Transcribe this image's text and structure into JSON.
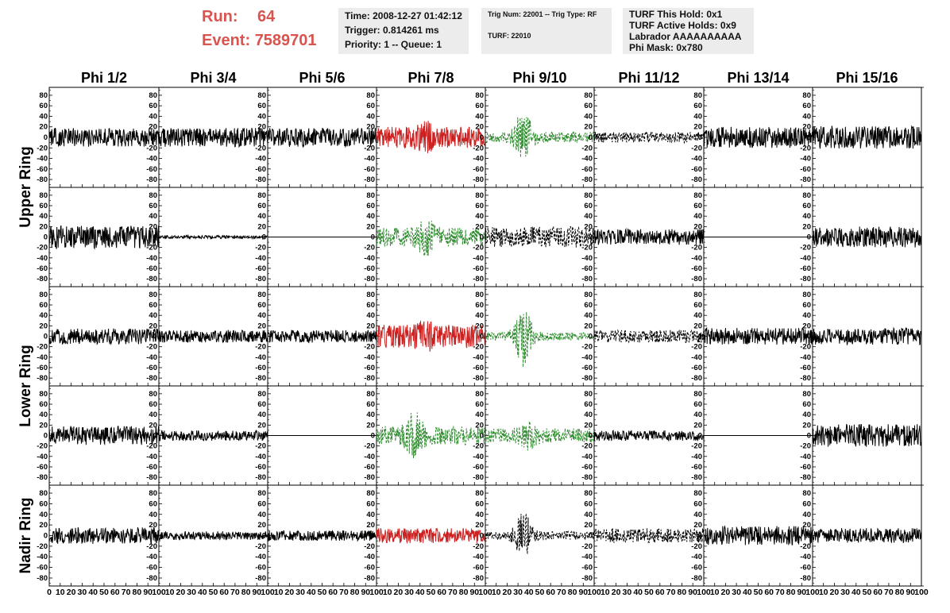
{
  "header": {
    "run_label": "Run:",
    "run_value": "64",
    "event_label": "Event:",
    "event_value": "7589701"
  },
  "info_time": {
    "time": "Time: 2008-12-27 01:42:12",
    "trigger": "Trigger: 0.814261 ms",
    "priority": "Priority: 1 -- Queue: 1"
  },
  "info_trig": {
    "trig": "Trig Num: 22001 -- Trig Type: RF",
    "turf": "TURF: 22010"
  },
  "info_turf": {
    "hold": "TURF This Hold: 0x1",
    "active": "TURF Active Holds: 0x9",
    "labrador": "Labrador AAAAAAAAAA",
    "phimask": "Phi Mask: 0x780"
  },
  "colors": {
    "normal": "#000000",
    "triggered": "#cc2222",
    "masked": "#2e8b2e",
    "info_bg": "#ececec",
    "header": "#d9534f"
  },
  "chart_data": {
    "type": "line",
    "columns": [
      "Phi 1/2",
      "Phi 3/4",
      "Phi 5/6",
      "Phi 7/8",
      "Phi 9/10",
      "Phi 11/12",
      "Phi 13/14",
      "Phi 15/16"
    ],
    "ring_labels": [
      "Upper Ring",
      "Lower Ring",
      "Nadir Ring"
    ],
    "rows": 5,
    "ylim": [
      -95,
      95
    ],
    "yticks": [
      -80,
      -60,
      -40,
      -20,
      0,
      20,
      40,
      60,
      80
    ],
    "xlim": [
      0,
      100
    ],
    "xticks": [
      0,
      10,
      20,
      30,
      40,
      50,
      60,
      70,
      80,
      90,
      100
    ],
    "grid": false,
    "panels": [
      [
        {
          "style": "solid",
          "color": "normal",
          "amp": 18
        },
        {
          "style": "solid",
          "color": "normal",
          "amp": 18
        },
        {
          "style": "solid",
          "color": "normal",
          "amp": 18
        },
        {
          "style": "solid",
          "color": "triggered",
          "amp": 20,
          "burst": [
            45,
            18
          ]
        },
        {
          "style": "dashed",
          "color": "masked",
          "amp": 10,
          "burst": [
            35,
            45
          ]
        },
        {
          "style": "dashed",
          "color": "normal",
          "amp": 10
        },
        {
          "style": "solid",
          "color": "normal",
          "amp": 20
        },
        {
          "style": "solid",
          "color": "normal",
          "amp": 22
        }
      ],
      [
        {
          "style": "solid",
          "color": "normal",
          "amp": 22
        },
        {
          "style": "solid",
          "color": "normal",
          "amp": 3
        },
        {
          "style": "flat",
          "color": "normal",
          "amp": 0
        },
        {
          "style": "dashed",
          "color": "masked",
          "amp": 18,
          "burst": [
            45,
            25
          ]
        },
        {
          "style": "dashed",
          "color": "normal",
          "amp": 20
        },
        {
          "style": "solid",
          "color": "normal",
          "amp": 15
        },
        {
          "style": "flat",
          "color": "normal",
          "amp": 0
        },
        {
          "style": "solid",
          "color": "normal",
          "amp": 20
        }
      ],
      [
        {
          "style": "solid",
          "color": "normal",
          "amp": 15
        },
        {
          "style": "solid",
          "color": "normal",
          "amp": 12
        },
        {
          "style": "solid",
          "color": "normal",
          "amp": 12
        },
        {
          "style": "solid",
          "color": "triggered",
          "amp": 22,
          "burst": [
            45,
            12
          ]
        },
        {
          "style": "dashed",
          "color": "masked",
          "amp": 8,
          "burst": [
            35,
            55
          ]
        },
        {
          "style": "dashed",
          "color": "normal",
          "amp": 12
        },
        {
          "style": "solid",
          "color": "normal",
          "amp": 16
        },
        {
          "style": "solid",
          "color": "normal",
          "amp": 16
        }
      ],
      [
        {
          "style": "solid",
          "color": "normal",
          "amp": 18
        },
        {
          "style": "solid",
          "color": "normal",
          "amp": 10
        },
        {
          "style": "flat",
          "color": "normal",
          "amp": 0
        },
        {
          "style": "dashed",
          "color": "masked",
          "amp": 18,
          "burst": [
            35,
            30
          ]
        },
        {
          "style": "dashed",
          "color": "masked",
          "amp": 14,
          "burst": [
            40,
            15
          ]
        },
        {
          "style": "solid",
          "color": "normal",
          "amp": 10
        },
        {
          "style": "flat",
          "color": "normal",
          "amp": 0
        },
        {
          "style": "solid",
          "color": "normal",
          "amp": 22
        }
      ],
      [
        {
          "style": "solid",
          "color": "normal",
          "amp": 16
        },
        {
          "style": "solid",
          "color": "normal",
          "amp": 8
        },
        {
          "style": "solid",
          "color": "normal",
          "amp": 10
        },
        {
          "style": "solid",
          "color": "triggered",
          "amp": 14
        },
        {
          "style": "dashed",
          "color": "normal",
          "amp": 8,
          "burst": [
            35,
            40
          ]
        },
        {
          "style": "dashed",
          "color": "normal",
          "amp": 14
        },
        {
          "style": "solid",
          "color": "normal",
          "amp": 18
        },
        {
          "style": "solid",
          "color": "normal",
          "amp": 14
        }
      ]
    ]
  }
}
